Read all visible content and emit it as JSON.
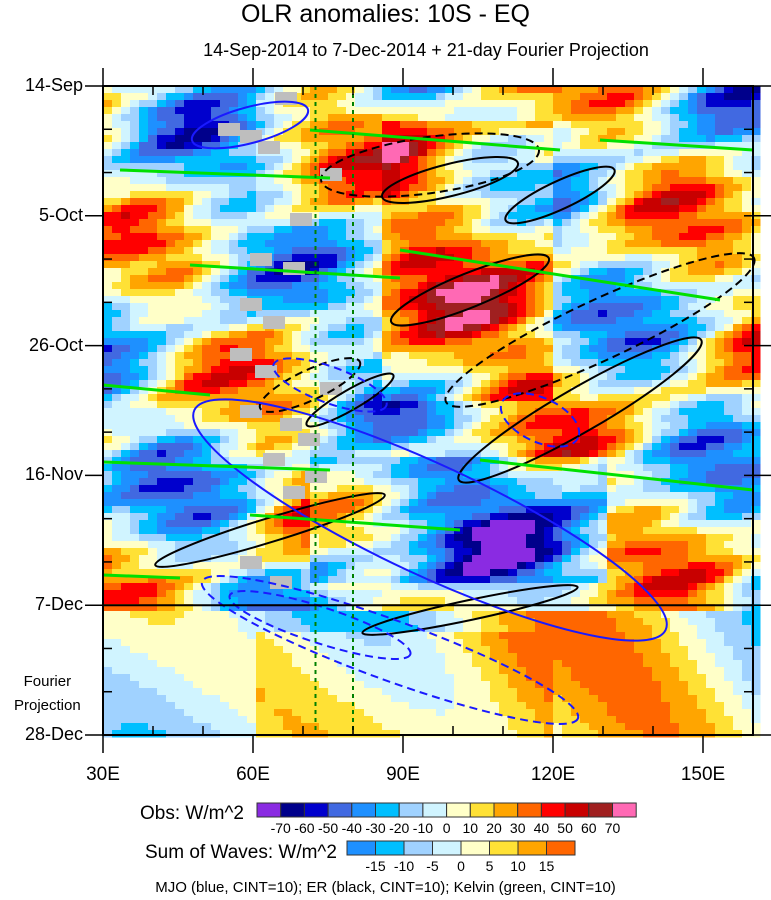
{
  "chart_data": {
    "type": "heatmap",
    "title": "OLR anomalies: 10S - EQ",
    "subtitle": "14-Sep-2014 to 7-Dec-2014 + 21-day Fourier Projection",
    "x_ticks": [
      "30E",
      "60E",
      "90E",
      "120E",
      "150E"
    ],
    "x_tick_values": [
      30,
      60,
      90,
      120,
      150
    ],
    "xlim": [
      30,
      160
    ],
    "y_ticks": [
      "14-Sep",
      "5-Oct",
      "26-Oct",
      "16-Nov",
      "7-Dec",
      "28-Dec"
    ],
    "y_tick_days": [
      0,
      21,
      42,
      63,
      84,
      105
    ],
    "projection_label": "Fourier\nProjection",
    "projection_start_day": 84,
    "reference_lons": [
      72.5,
      80
    ],
    "obs_colorbar": {
      "label": "Obs: W/m^2",
      "levels": [
        "-70",
        "-60",
        "-50",
        "-40",
        "-30",
        "-20",
        "-10",
        "0",
        "10",
        "20",
        "30",
        "40",
        "50",
        "60",
        "70"
      ],
      "colors": [
        "#8a2be2",
        "#00008b",
        "#0000cd",
        "#4169e1",
        "#1e90ff",
        "#00bfff",
        "#a0d2ff",
        "#d0f4ff",
        "#ffffc8",
        "#ffe135",
        "#ffa500",
        "#ff6600",
        "#ff0000",
        "#c80000",
        "#a02020",
        "#ff69b4"
      ]
    },
    "waves_colorbar": {
      "label": "Sum of Waves: W/m^2",
      "levels": [
        "-15",
        "-10",
        "-5",
        "0",
        "5",
        "10",
        "15"
      ],
      "colors": [
        "#1e90ff",
        "#00bfff",
        "#a0d2ff",
        "#d0f4ff",
        "#ffffc8",
        "#ffe135",
        "#ffa500",
        "#ff6600"
      ]
    },
    "legend": "MJO (blue, CINT=10); ER (black, CINT=10); Kelvin (green, CINT=10)"
  }
}
